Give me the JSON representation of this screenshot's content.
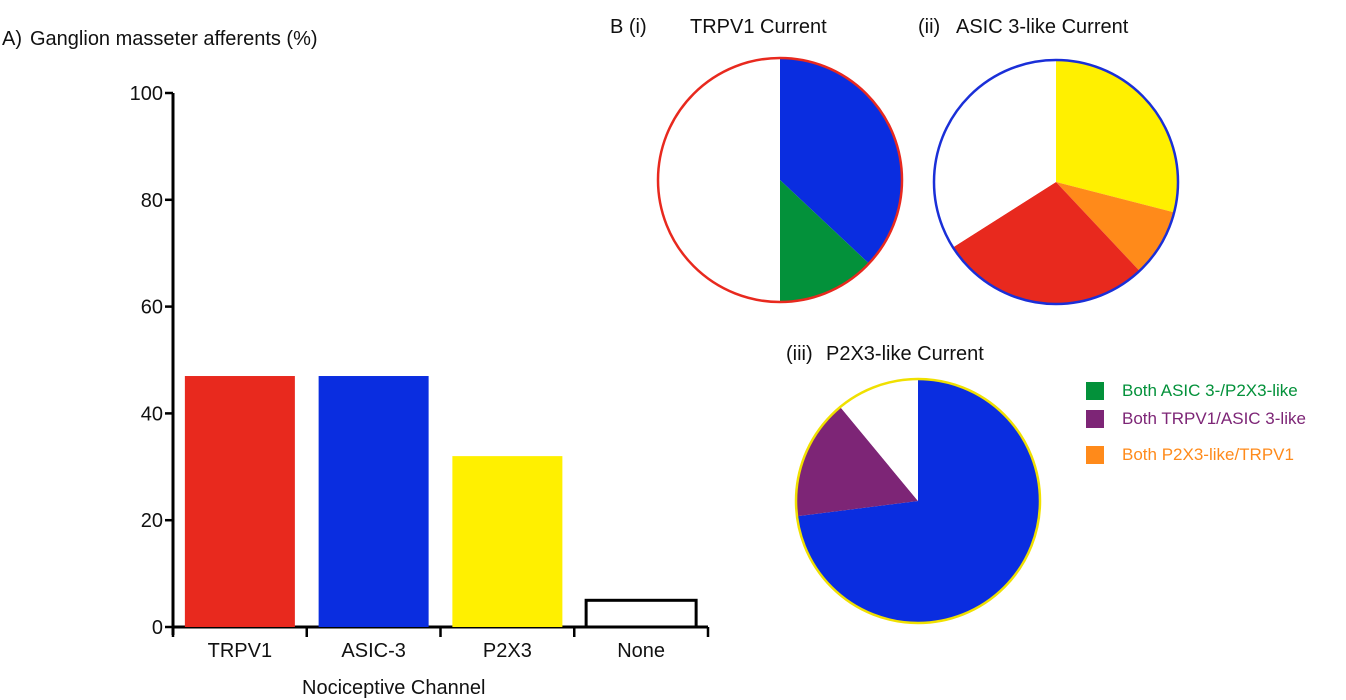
{
  "chart_data": [
    {
      "type": "bar",
      "panel": "A)",
      "title": "Ganglion masseter afferents (%)",
      "xlabel": "Nociceptive Channel",
      "ylabel": "",
      "categories": [
        "TRPV1",
        "ASIC-3",
        "P2X3",
        "None"
      ],
      "values": [
        47,
        47,
        32,
        5
      ],
      "colors": [
        "#e8291e",
        "#0a2de0",
        "#fff000",
        "#ffffff"
      ],
      "ylim": [
        0,
        100
      ],
      "yticks": [
        "0",
        "20",
        "40",
        "60",
        "80",
        "100"
      ],
      "grid": false
    },
    {
      "type": "pie",
      "panel": "B (i)",
      "title": "TRPV1 Current",
      "outline_color": "#e8291e",
      "slices": [
        {
          "value": 37,
          "color": "#0a2de0"
        },
        {
          "value": 13,
          "color": "#03913a"
        },
        {
          "value": 50,
          "color": "#ffffff"
        }
      ]
    },
    {
      "type": "pie",
      "panel": "(ii)",
      "title": "ASIC 3-like Current",
      "outline_color": "#1a2fd8",
      "slices": [
        {
          "value": 29,
          "color": "#fff000"
        },
        {
          "value": 9,
          "color": "#ff8a1a"
        },
        {
          "value": 28,
          "color": "#e8291e"
        },
        {
          "value": 34,
          "color": "#ffffff"
        }
      ]
    },
    {
      "type": "pie",
      "panel": "(iii)",
      "title": "P2X3-like Current",
      "outline_color": "#f0e000",
      "slices": [
        {
          "value": 73,
          "color": "#0a2de0"
        },
        {
          "value": 16,
          "color": "#7d2576"
        },
        {
          "value": 11,
          "color": "#ffffff"
        }
      ]
    }
  ],
  "legend": [
    {
      "label": "Both ASIC 3-/P2X3-like",
      "color": "#03913a"
    },
    {
      "label": "Both TRPV1/ASIC 3-like",
      "color": "#7d2576"
    },
    {
      "label": "Both P2X3-like/TRPV1",
      "color": "#ff8a1a"
    }
  ]
}
